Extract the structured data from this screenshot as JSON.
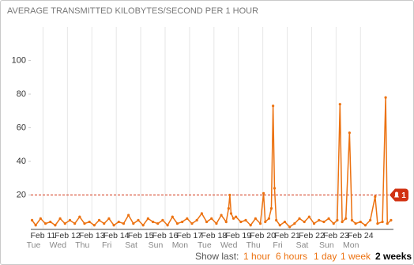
{
  "chart_data": {
    "type": "line",
    "title": "AVERAGE TRANSMITTED KILOBYTES/SECOND PER 1 HOUR",
    "x": [
      -0.45,
      -0.3,
      -0.1,
      0.1,
      0.3,
      0.5,
      0.7,
      0.9,
      1.1,
      1.3,
      1.5,
      1.7,
      1.9,
      2.1,
      2.3,
      2.5,
      2.7,
      2.9,
      3.1,
      3.3,
      3.5,
      3.7,
      3.9,
      4.1,
      4.3,
      4.5,
      4.7,
      4.9,
      5.1,
      5.3,
      5.5,
      5.7,
      5.9,
      6.1,
      6.3,
      6.5,
      6.7,
      6.9,
      7.1,
      7.3,
      7.5,
      7.6,
      7.65,
      7.7,
      7.8,
      7.9,
      8.1,
      8.3,
      8.5,
      8.7,
      8.9,
      9.03,
      9.1,
      9.25,
      9.35,
      9.42,
      9.48,
      9.55,
      9.7,
      9.9,
      10.1,
      10.3,
      10.5,
      10.7,
      10.9,
      11.1,
      11.3,
      11.5,
      11.7,
      11.9,
      12.05,
      12.16,
      12.25,
      12.4,
      12.55,
      12.65,
      12.8,
      13.0,
      13.2,
      13.4,
      13.6,
      13.7,
      13.9,
      14.03,
      14.1,
      14.25
    ],
    "series": [
      {
        "name": "Average",
        "color": "#ec7211",
        "values": [
          5,
          2,
          6,
          3,
          4,
          2,
          6,
          3,
          5,
          3,
          7,
          3,
          4,
          2,
          5,
          3,
          6,
          2,
          4,
          3,
          8,
          3,
          5,
          2,
          6,
          4,
          3,
          5,
          2,
          7,
          3,
          4,
          6,
          3,
          5,
          9,
          4,
          6,
          3,
          8,
          4,
          12,
          20,
          9,
          6,
          7,
          4,
          5,
          2,
          6,
          3,
          21,
          4,
          6,
          12,
          73,
          24,
          5,
          2,
          4,
          1,
          3,
          6,
          4,
          7,
          3,
          5,
          4,
          6,
          3,
          5,
          74,
          4,
          6,
          57,
          5,
          3,
          4,
          2,
          5,
          19,
          3,
          4,
          78,
          3,
          5
        ]
      }
    ],
    "xlim": [
      -0.5,
      14.35
    ],
    "xticks": [
      {
        "value": 0,
        "label": "Feb 11"
      },
      {
        "value": 1,
        "label": "Feb 12"
      },
      {
        "value": 2,
        "label": "Feb 13"
      },
      {
        "value": 3,
        "label": "Feb 14"
      },
      {
        "value": 4,
        "label": "Feb 15"
      },
      {
        "value": 5,
        "label": "Feb 16"
      },
      {
        "value": 6,
        "label": "Feb 17"
      },
      {
        "value": 7,
        "label": "Feb 18"
      },
      {
        "value": 8,
        "label": "Feb 19"
      },
      {
        "value": 9,
        "label": "Feb 20"
      },
      {
        "value": 10,
        "label": "Feb 21"
      },
      {
        "value": 11,
        "label": "Feb 22"
      },
      {
        "value": 12,
        "label": "Feb 23"
      },
      {
        "value": 13,
        "label": "Feb 24"
      }
    ],
    "xtick_weekdays": [
      "Tue",
      "Wed",
      "Thu",
      "Fri",
      "Sat",
      "Sun",
      "Mon",
      "Tue",
      "Wed",
      "Thu",
      "Fri",
      "Sat",
      "Sun",
      "Mon"
    ],
    "ylim": [
      0,
      120
    ],
    "yticks": [
      20,
      40,
      60,
      80,
      100
    ],
    "grid": true,
    "threshold": {
      "value": 20,
      "color": "#d13212",
      "alarm_count": "1"
    },
    "range_prompt": "Show last:",
    "range_options": [
      "1 hour",
      "6 hours",
      "1 day",
      "1 week",
      "2 weeks"
    ],
    "range_selected": 4
  }
}
